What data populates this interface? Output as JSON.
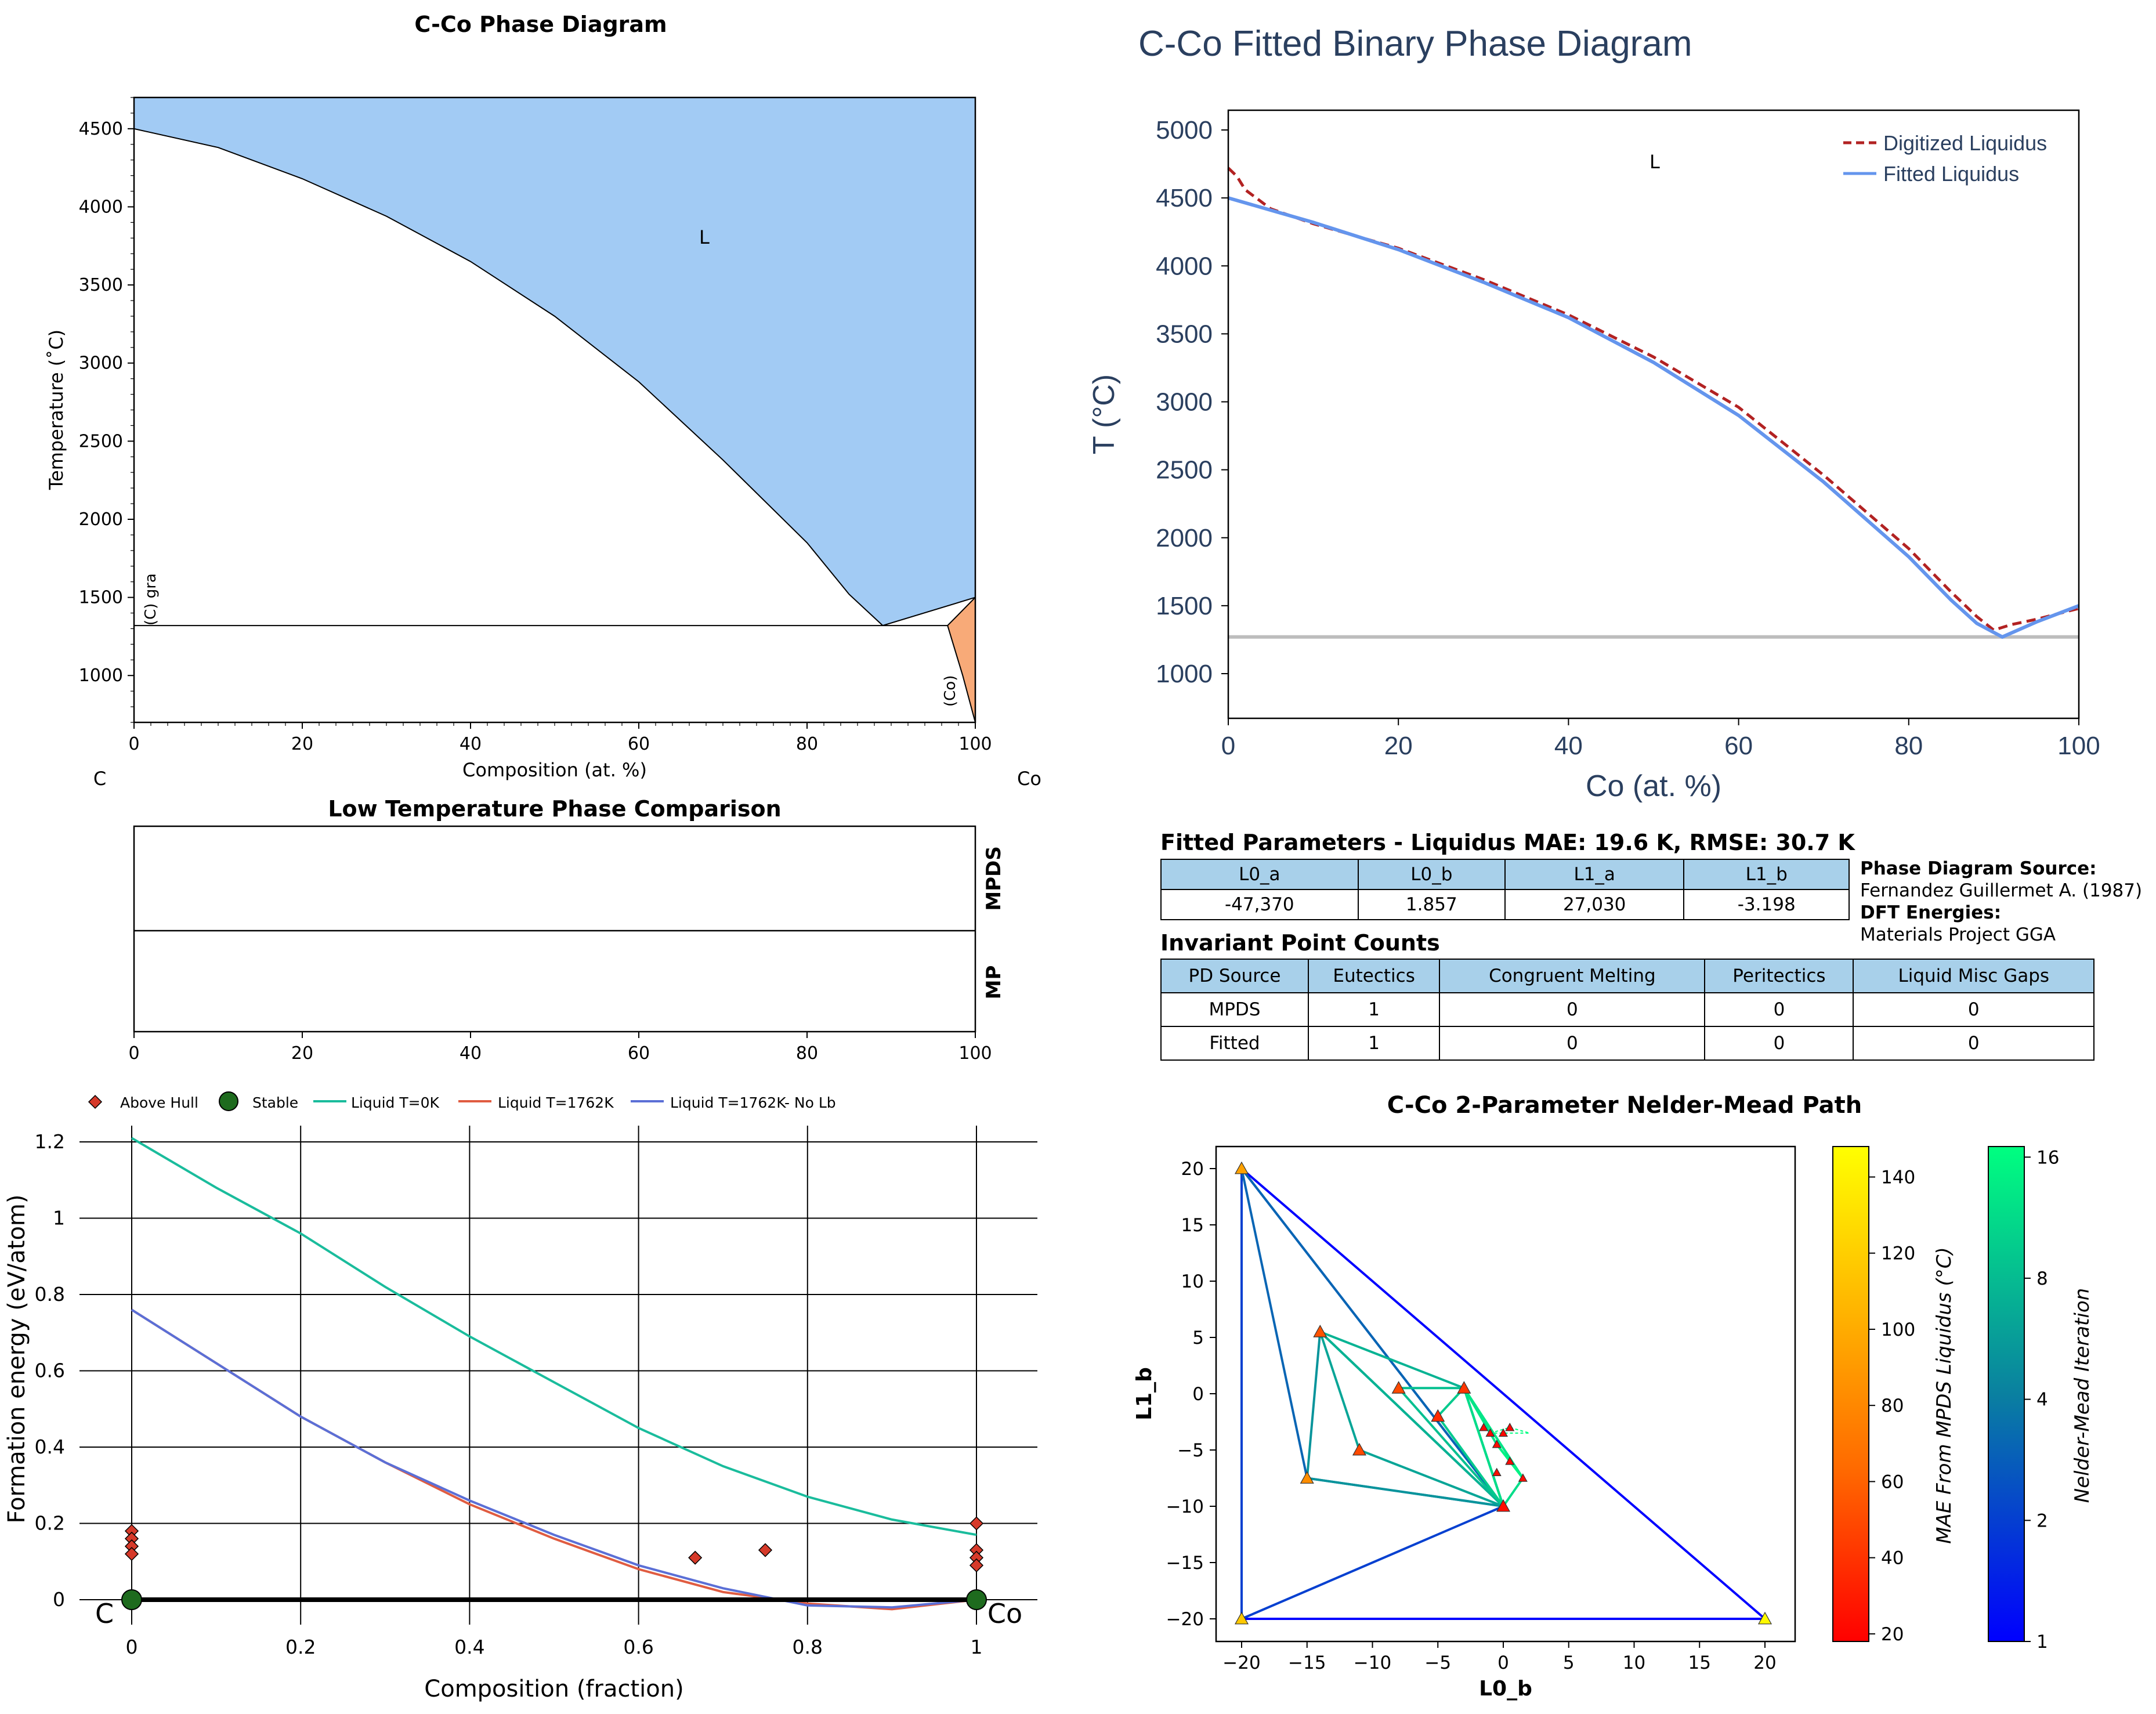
{
  "phase_diagram": {
    "title": "C-Co Phase Diagram",
    "xlabel": "Composition (at. %)",
    "ylabel": "Temperature (˚C)",
    "left_element": "C",
    "right_element": "Co",
    "xticks": [
      "0",
      "20",
      "40",
      "60",
      "80",
      "100"
    ],
    "yticks": [
      "1000",
      "1500",
      "2000",
      "2500",
      "3000",
      "3500",
      "4000",
      "4500"
    ],
    "label_liquid": "L",
    "label_graphite": "(C) gra",
    "label_co": "(Co)",
    "colors": {
      "liquid": "#a2cbf4",
      "co": "#f8aa78"
    }
  },
  "low_temp": {
    "title": "Low Temperature Phase Comparison",
    "row_top": "MPDS",
    "row_bottom": "MP",
    "xticks": [
      "0",
      "20",
      "40",
      "60",
      "80",
      "100"
    ]
  },
  "formation": {
    "xlabel": "Composition (fraction)",
    "ylabel": "Formation energy (eV/atom)",
    "xticks": [
      "0",
      "0.2",
      "0.4",
      "0.6",
      "0.8",
      "1"
    ],
    "yticks": [
      "0",
      "0.2",
      "0.4",
      "0.6",
      "0.8",
      "1",
      "1.2"
    ],
    "left_element": "C",
    "right_element": "Co",
    "legend": [
      "Above Hull",
      "Stable",
      "Liquid T=0K",
      "Liquid T=1762K",
      "Liquid T=1762K- No Lb"
    ],
    "colors": {
      "t0": "#1abc9c",
      "t1762": "#e05c41",
      "nolb": "#5b6fd6",
      "hull": "#d63a2a"
    }
  },
  "fitted": {
    "title": "C-Co Fitted Binary Phase Diagram",
    "xlabel": "Co (at. %)",
    "ylabel": "T (°C)",
    "xticks": [
      "0",
      "20",
      "40",
      "60",
      "80",
      "100"
    ],
    "yticks": [
      "1000",
      "1500",
      "2000",
      "2500",
      "3000",
      "3500",
      "4000",
      "4500",
      "5000"
    ],
    "label_liquid": "L",
    "legend_digitized": "Digitized Liquidus",
    "legend_fitted": "Fitted Liquidus",
    "colors": {
      "digitized": "#b22222",
      "fitted": "#6495ed",
      "eutectic": "#bdbdbd"
    }
  },
  "params": {
    "caption": "Fitted Parameters - Liquidus MAE: 19.6 K, RMSE: 30.7 K",
    "headers": [
      "L0_a",
      "L0_b",
      "L1_a",
      "L1_b"
    ],
    "values": [
      "-47,370",
      "1.857",
      "27,030",
      "-3.198"
    ]
  },
  "source": {
    "pd_label": "Phase Diagram Source:",
    "pd_value": "Fernandez Guillermet A. (1987)",
    "dft_label": "DFT Energies:",
    "dft_value": "Materials Project GGA"
  },
  "invariants": {
    "caption": "Invariant Point Counts",
    "headers": [
      "PD Source",
      "Eutectics",
      "Congruent Melting",
      "Peritectics",
      "Liquid Misc Gaps"
    ],
    "rows": [
      [
        "MPDS",
        "1",
        "0",
        "0",
        "0"
      ],
      [
        "Fitted",
        "1",
        "0",
        "0",
        "0"
      ]
    ]
  },
  "nelder": {
    "title": "C-Co 2-Parameter Nelder-Mead Path",
    "xlabel": "L0_b",
    "ylabel": "L1_b",
    "xticks": [
      "−20",
      "−15",
      "−10",
      "−5",
      "0",
      "5",
      "10",
      "15",
      "20"
    ],
    "yticks": [
      "−20",
      "−15",
      "−10",
      "−5",
      "0",
      "5",
      "10",
      "15",
      "20"
    ],
    "cbar_mae_label": "MAE From MPDS Liquidus (°C)",
    "cbar_mae_ticks": [
      "20",
      "40",
      "60",
      "80",
      "100",
      "120",
      "140"
    ],
    "cbar_iter_label": "Nelder-Mead Iteration",
    "cbar_iter_ticks": [
      "1",
      "2",
      "4",
      "8",
      "16"
    ]
  },
  "chart_data": [
    {
      "type": "area",
      "title": "C-Co Phase Diagram",
      "xlabel": "Composition (at. %)",
      "ylabel": "Temperature (˚C)",
      "xlim": [
        0,
        100
      ],
      "ylim": [
        700,
        4700
      ],
      "liquidus_left": [
        [
          0,
          4500
        ],
        [
          10,
          4380
        ],
        [
          20,
          4180
        ],
        [
          30,
          3940
        ],
        [
          40,
          3650
        ],
        [
          50,
          3300
        ],
        [
          60,
          2880
        ],
        [
          70,
          2380
        ],
        [
          80,
          1850
        ],
        [
          85,
          1520
        ],
        [
          89,
          1320
        ]
      ],
      "liquidus_right": [
        [
          89,
          1320
        ],
        [
          100,
          1500
        ]
      ],
      "eutectic_T": 1320,
      "co_solvus": [
        [
          96.7,
          1320
        ],
        [
          98.5,
          1000
        ],
        [
          100,
          700
        ]
      ],
      "co_top": [
        [
          96.7,
          1320
        ],
        [
          100,
          1500
        ]
      ]
    },
    {
      "type": "line",
      "xlabel": "Composition (fraction)",
      "ylabel": "Formation energy (eV/atom)",
      "xlim": [
        -0.02,
        1.02
      ],
      "ylim": [
        -0.05,
        1.25
      ],
      "series": [
        {
          "name": "Liquid T=0K",
          "x": [
            0,
            0.1,
            0.2,
            0.3,
            0.4,
            0.5,
            0.6,
            0.7,
            0.8,
            0.9,
            1
          ],
          "y": [
            1.21,
            1.08,
            0.96,
            0.82,
            0.69,
            0.57,
            0.45,
            0.35,
            0.27,
            0.21,
            0.17
          ]
        },
        {
          "name": "Liquid T=1762K",
          "x": [
            0,
            0.1,
            0.2,
            0.3,
            0.4,
            0.5,
            0.6,
            0.7,
            0.8,
            0.9,
            1
          ],
          "y": [
            0.76,
            0.62,
            0.48,
            0.36,
            0.25,
            0.16,
            0.08,
            0.02,
            -0.01,
            -0.025,
            0
          ]
        },
        {
          "name": "Liquid T=1762K- No Lb",
          "x": [
            0,
            0.1,
            0.2,
            0.3,
            0.4,
            0.5,
            0.6,
            0.7,
            0.8,
            0.9,
            1
          ],
          "y": [
            0.76,
            0.62,
            0.48,
            0.36,
            0.26,
            0.17,
            0.09,
            0.03,
            -0.015,
            -0.02,
            0
          ]
        }
      ],
      "above_hull": [
        [
          0,
          0.18
        ],
        [
          0,
          0.16
        ],
        [
          0,
          0.14
        ],
        [
          0,
          0.12
        ],
        [
          0.667,
          0.11
        ],
        [
          0.75,
          0.13
        ],
        [
          1,
          0.2
        ],
        [
          1,
          0.13
        ],
        [
          1,
          0.11
        ],
        [
          1,
          0.09
        ]
      ],
      "stable": [
        [
          0,
          0
        ],
        [
          1,
          0
        ]
      ],
      "hull": [
        [
          0,
          0
        ],
        [
          1,
          0
        ]
      ]
    },
    {
      "type": "line",
      "title": "C-Co Fitted Binary Phase Diagram",
      "xlabel": "Co (at. %)",
      "ylabel": "T (°C)",
      "xlim": [
        0,
        100
      ],
      "ylim": [
        700,
        5150
      ],
      "series": [
        {
          "name": "Digitized Liquidus",
          "x": [
            0,
            1,
            2,
            5,
            10,
            20,
            30,
            40,
            50,
            60,
            70,
            80,
            85,
            88,
            90,
            92,
            95,
            100
          ],
          "y": [
            4720,
            4660,
            4560,
            4420,
            4310,
            4130,
            3900,
            3640,
            3330,
            2960,
            2460,
            1920,
            1600,
            1420,
            1320,
            1360,
            1400,
            1480
          ]
        },
        {
          "name": "Fitted Liquidus",
          "x": [
            0,
            5,
            10,
            20,
            30,
            40,
            50,
            60,
            70,
            80,
            85,
            88,
            91,
            95,
            100
          ],
          "y": [
            4500,
            4410,
            4320,
            4120,
            3880,
            3620,
            3290,
            2900,
            2410,
            1860,
            1540,
            1370,
            1270,
            1380,
            1500
          ]
        }
      ],
      "eutectic_T": 1270
    },
    {
      "type": "table",
      "title": "Fitted Parameters - Liquidus MAE: 19.6 K, RMSE: 30.7 K",
      "columns": [
        "L0_a",
        "L0_b",
        "L1_a",
        "L1_b"
      ],
      "rows": [
        [
          "-47,370",
          "1.857",
          "27,030",
          "-3.198"
        ]
      ]
    },
    {
      "type": "table",
      "title": "Invariant Point Counts",
      "columns": [
        "PD Source",
        "Eutectics",
        "Congruent Melting",
        "Peritectics",
        "Liquid Misc Gaps"
      ],
      "rows": [
        [
          "MPDS",
          "1",
          "0",
          "0",
          "0"
        ],
        [
          "Fitted",
          "1",
          "0",
          "0",
          "0"
        ]
      ]
    },
    {
      "type": "scatter",
      "title": "C-Co 2-Parameter Nelder-Mead Path",
      "xlabel": "L0_b",
      "ylabel": "L1_b",
      "xlim": [
        -22,
        22
      ],
      "ylim": [
        -22,
        22
      ],
      "points": [
        {
          "x": -20,
          "y": 20,
          "mae": 100
        },
        {
          "x": -20,
          "y": -20,
          "mae": 120
        },
        {
          "x": 20,
          "y": -20,
          "mae": 145
        },
        {
          "x": -14,
          "y": 5.5,
          "mae": 60
        },
        {
          "x": -15,
          "y": -7.5,
          "mae": 90
        },
        {
          "x": -11,
          "y": -5,
          "mae": 55
        },
        {
          "x": -8,
          "y": 0.5,
          "mae": 55
        },
        {
          "x": -3,
          "y": 0.5,
          "mae": 45
        },
        {
          "x": -5,
          "y": -2,
          "mae": 40
        },
        {
          "x": 0,
          "y": -10,
          "mae": 25
        },
        {
          "x": -0.5,
          "y": -4.5,
          "mae": 25
        },
        {
          "x": 0.5,
          "y": -6,
          "mae": 22
        },
        {
          "x": -0.5,
          "y": -7,
          "mae": 25
        },
        {
          "x": 1.5,
          "y": -7.5,
          "mae": 25
        },
        {
          "x": 0,
          "y": -3.5,
          "mae": 22
        },
        {
          "x": -1,
          "y": -3.5,
          "mae": 22
        },
        {
          "x": 0.5,
          "y": -3,
          "mae": 21
        },
        {
          "x": -1.5,
          "y": -3,
          "mae": 23
        }
      ],
      "simplices": [
        {
          "iter": 1,
          "pts": [
            [
              -20,
              20
            ],
            [
              -20,
              -20
            ],
            [
              20,
              -20
            ]
          ]
        },
        {
          "iter": 2,
          "pts": [
            [
              -20,
              20
            ],
            [
              -20,
              -20
            ],
            [
              0,
              -10
            ]
          ]
        },
        {
          "iter": 3,
          "pts": [
            [
              -20,
              20
            ],
            [
              -15,
              -7.5
            ],
            [
              0,
              -10
            ]
          ]
        },
        {
          "iter": 5,
          "pts": [
            [
              -14,
              5.5
            ],
            [
              -15,
              -7.5
            ],
            [
              0,
              -10
            ]
          ]
        },
        {
          "iter": 6,
          "pts": [
            [
              -14,
              5.5
            ],
            [
              -11,
              -5
            ],
            [
              0,
              -10
            ]
          ]
        },
        {
          "iter": 7,
          "pts": [
            [
              -14,
              5.5
            ],
            [
              -3,
              0.5
            ],
            [
              0,
              -10
            ]
          ]
        },
        {
          "iter": 8,
          "pts": [
            [
              -8,
              0.5
            ],
            [
              -3,
              0.5
            ],
            [
              0,
              -10
            ]
          ]
        },
        {
          "iter": 9,
          "pts": [
            [
              -5,
              -2
            ],
            [
              -3,
              0.5
            ],
            [
              0,
              -10
            ]
          ]
        },
        {
          "iter": 11,
          "pts": [
            [
              -3,
              0.5
            ],
            [
              1.5,
              -7.5
            ],
            [
              0,
              -10
            ]
          ]
        },
        {
          "iter": 12,
          "pts": [
            [
              -3,
              0.5
            ],
            [
              -0.5,
              -4.5
            ],
            [
              1.5,
              -7.5
            ]
          ]
        },
        {
          "iter": 14,
          "pts": [
            [
              -0.5,
              -4.5
            ],
            [
              0.5,
              -6
            ],
            [
              1.5,
              -7.5
            ]
          ]
        },
        {
          "iter": 16,
          "pts": [
            [
              -1,
              -3.5
            ],
            [
              0.5,
              -3
            ],
            [
              2,
              -3.5
            ]
          ]
        }
      ],
      "mae_range": [
        18,
        148
      ],
      "iter_range": [
        1,
        16
      ]
    }
  ]
}
